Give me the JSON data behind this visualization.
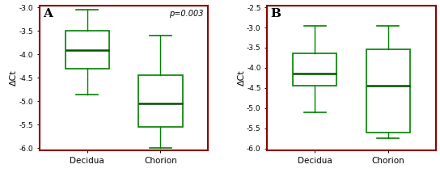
{
  "panel_A": {
    "label": "A",
    "pvalue": "p=0.003",
    "ylabel": "ΔCt",
    "xlabels": [
      "Decidua",
      "Chorion"
    ],
    "ylim": [
      -6.05,
      -2.95
    ],
    "yticks": [
      -6.0,
      -5.5,
      -5.0,
      -4.5,
      -4.0,
      -3.5,
      -3.0
    ],
    "boxes": [
      {
        "whislo": -4.85,
        "q1": -4.3,
        "med": -3.9,
        "q3": -3.5,
        "whishi": -3.05
      },
      {
        "whislo": -6.0,
        "q1": -5.55,
        "med": -5.05,
        "q3": -4.45,
        "whishi": -3.6
      }
    ]
  },
  "panel_B": {
    "label": "B",
    "ylabel": "ΔCt",
    "xlabels": [
      "Decidua",
      "Chorion"
    ],
    "ylim": [
      -6.05,
      -2.45
    ],
    "yticks": [
      -6.0,
      -5.5,
      -5.0,
      -4.5,
      -4.0,
      -3.5,
      -3.0,
      -2.5
    ],
    "boxes": [
      {
        "whislo": -5.1,
        "q1": -4.45,
        "med": -4.15,
        "q3": -3.65,
        "whishi": -2.95
      },
      {
        "whislo": -5.75,
        "q1": -5.6,
        "med": -4.45,
        "q3": -3.55,
        "whishi": -2.95
      }
    ]
  },
  "box_color": "#008000",
  "median_color": "#005000",
  "whisker_color": "#008000",
  "cap_color": "#008000",
  "border_color": "#8B0000",
  "background_color": "#ffffff",
  "label_fontsize": 9,
  "tick_fontsize": 6.5,
  "xlabel_fontsize": 7.5,
  "ylabel_fontsize": 8,
  "pvalue_fontsize": 7
}
